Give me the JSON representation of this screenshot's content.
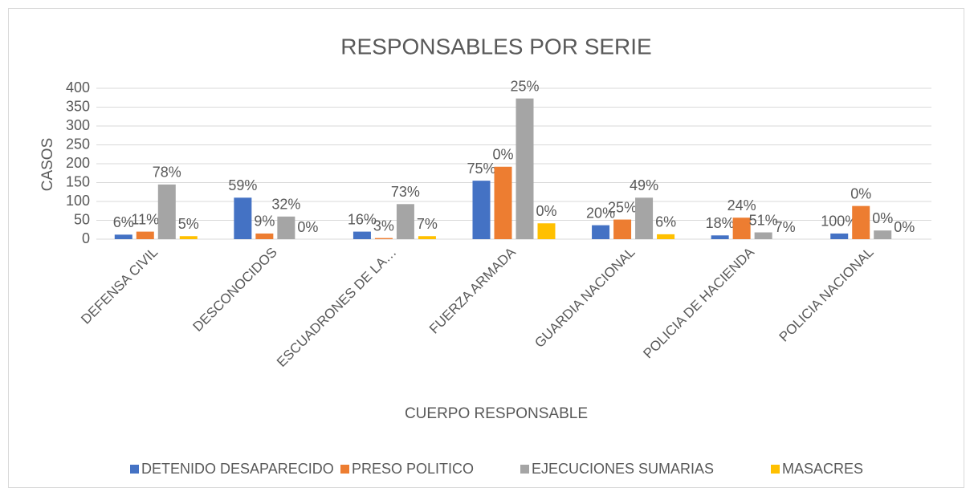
{
  "chart_data": {
    "type": "bar",
    "title": "RESPONSABLES POR SERIE",
    "x_label": "CUERPO RESPONSABLE",
    "y_label": "CASOS",
    "categories": [
      "DEFENSA CIVIL",
      "DESCONOCIDOS",
      "ESCUADRONES DE LA…",
      "FUERZA ARMADA",
      "GUARDIA NACIONAL",
      "POLICIA DE HACIENDA",
      "POLICIA NACIONAL"
    ],
    "series": [
      {
        "name": "DETENIDO DESAPARECIDO",
        "color": "#4472c4",
        "values": [
          12,
          110,
          20,
          155,
          37,
          10,
          15
        ],
        "data_labels": [
          "6%",
          "59%",
          "16%",
          "75%",
          "20%",
          "18%",
          "100%"
        ]
      },
      {
        "name": "PRESO POLITICO",
        "color": "#ed7d31",
        "values": [
          20,
          15,
          3,
          192,
          52,
          57,
          88
        ],
        "data_labels": [
          "11%",
          "9%",
          "3%",
          "0%",
          "25%",
          "24%",
          "0%"
        ]
      },
      {
        "name": "EJECUCIONES SUMARIAS",
        "color": "#a5a5a5",
        "values": [
          145,
          60,
          93,
          373,
          110,
          18,
          23
        ],
        "data_labels": [
          "78%",
          "32%",
          "73%",
          "25%",
          "49%",
          "51%",
          "0%"
        ]
      },
      {
        "name": "MASACRES",
        "color": "#ffc000",
        "values": [
          8,
          0,
          8,
          42,
          13,
          0,
          0
        ],
        "data_labels": [
          "5%",
          "0%",
          "7%",
          "0%",
          "6%",
          "7%",
          "0%"
        ]
      }
    ],
    "ylim": [
      0,
      400
    ],
    "yticks": [
      0,
      50,
      100,
      150,
      200,
      250,
      300,
      350,
      400
    ],
    "grid": true,
    "legend": "bottom"
  }
}
